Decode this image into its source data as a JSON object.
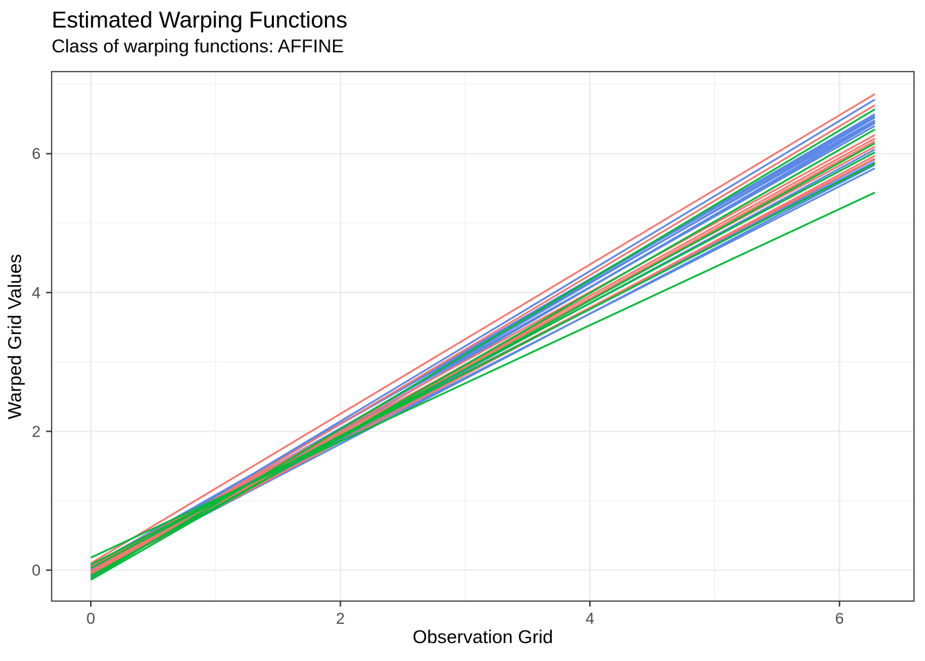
{
  "chart_data": {
    "type": "line",
    "title": "Estimated Warping Functions",
    "subtitle": "Class of warping functions: AFFINE",
    "xlabel": "Observation Grid",
    "ylabel": "Warped Grid Values",
    "xlim": [
      -0.314,
      6.597
    ],
    "ylim": [
      -0.446,
      7.183
    ],
    "x_ticks": [
      0,
      2,
      4,
      6
    ],
    "y_ticks": [
      0,
      2,
      4,
      6
    ],
    "x_minor_ticks": [
      1,
      3,
      5
    ],
    "y_minor_ticks": [
      1,
      3,
      5,
      7
    ],
    "x_data_range": [
      0,
      6.283
    ],
    "grid": "on",
    "legend": "none",
    "colors": {
      "red": "#F8766D",
      "green": "#00BA38",
      "blue": "#5B87E6",
      "grid_major": "#EBEBEB",
      "grid_minor": "#F1F1F1",
      "panel_border": "#333333",
      "tick_mark": "#333333",
      "tick_text": "#4d4d4d",
      "title_text": "#000000",
      "background": "#ffffff"
    },
    "series_note": "Each affine warping line: value y0 at x=0 and y1 at x=6.283 (2*pi)",
    "series": [
      {
        "group": "blue",
        "y0": -0.02,
        "y1": 6.78
      },
      {
        "group": "blue",
        "y0": 0.03,
        "y1": 6.57
      },
      {
        "group": "blue",
        "y0": 0.04,
        "y1": 6.54
      },
      {
        "group": "blue",
        "y0": -0.05,
        "y1": 6.52
      },
      {
        "group": "blue",
        "y0": 0.06,
        "y1": 6.48
      },
      {
        "group": "blue",
        "y0": -0.1,
        "y1": 6.46
      },
      {
        "group": "blue",
        "y0": -0.08,
        "y1": 6.44
      },
      {
        "group": "blue",
        "y0": 0.01,
        "y1": 6.4
      },
      {
        "group": "blue",
        "y0": -0.03,
        "y1": 6.06
      },
      {
        "group": "blue",
        "y0": -0.01,
        "y1": 5.92
      },
      {
        "group": "blue",
        "y0": 0.08,
        "y1": 5.88
      },
      {
        "group": "blue",
        "y0": -0.06,
        "y1": 5.84
      },
      {
        "group": "blue",
        "y0": 0.02,
        "y1": 5.79
      },
      {
        "group": "red",
        "y0": 0.1,
        "y1": 6.86
      },
      {
        "group": "red",
        "y0": -0.04,
        "y1": 6.7
      },
      {
        "group": "red",
        "y0": 0.04,
        "y1": 6.27
      },
      {
        "group": "red",
        "y0": -0.02,
        "y1": 6.22
      },
      {
        "group": "red",
        "y0": -0.05,
        "y1": 6.18
      },
      {
        "group": "red",
        "y0": 0.07,
        "y1": 6.1
      },
      {
        "group": "red",
        "y0": -0.07,
        "y1": 5.97
      },
      {
        "group": "red",
        "y0": 0.02,
        "y1": 5.93
      },
      {
        "group": "green",
        "y0": -0.12,
        "y1": 6.64
      },
      {
        "group": "green",
        "y0": -0.14,
        "y1": 6.35
      },
      {
        "group": "green",
        "y0": -0.08,
        "y1": 6.15
      },
      {
        "group": "green",
        "y0": 0.03,
        "y1": 6.02
      },
      {
        "group": "green",
        "y0": 0.08,
        "y1": 5.86
      },
      {
        "group": "green",
        "y0": 0.18,
        "y1": 5.44
      }
    ]
  }
}
